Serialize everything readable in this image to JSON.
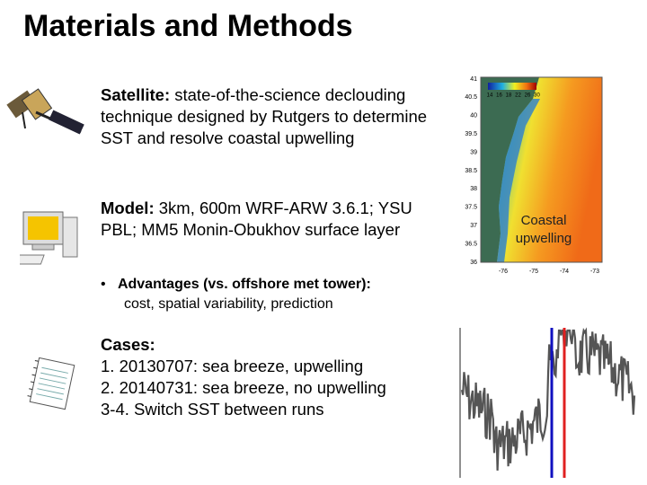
{
  "header": {
    "title": "Materials and Methods"
  },
  "items": {
    "satellite": {
      "label": "Satellite:",
      "text": "state-of-the-science declouding technique designed by Rutgers to determine SST and resolve coastal upwelling"
    },
    "model": {
      "label": "Model:",
      "text": "3km, 600m WRF-ARW 3.6.1; YSU PBL;  MM5 Monin-Obukhov surface layer"
    },
    "advantages": {
      "label": "Advantages (vs. offshore met tower):",
      "text": "cost, spatial variability, prediction"
    },
    "cases": {
      "label": "Cases:",
      "lines": [
        "1.  20130707: sea breeze, upwelling",
        "2.  20140731: sea breeze, no upwelling",
        "3-4. Switch SST between runs"
      ]
    }
  },
  "map": {
    "annotation": "Coastal upwelling",
    "lat_labels": [
      "41",
      "40.5",
      "40",
      "39.5",
      "39",
      "38.5",
      "38",
      "37.5",
      "37",
      "36.5",
      "36"
    ],
    "lon_labels": [
      "-76",
      "-75",
      "-74",
      "-73"
    ],
    "colorbar_labels": [
      "14",
      "16",
      "18",
      "22",
      "26",
      "30"
    ]
  }
}
